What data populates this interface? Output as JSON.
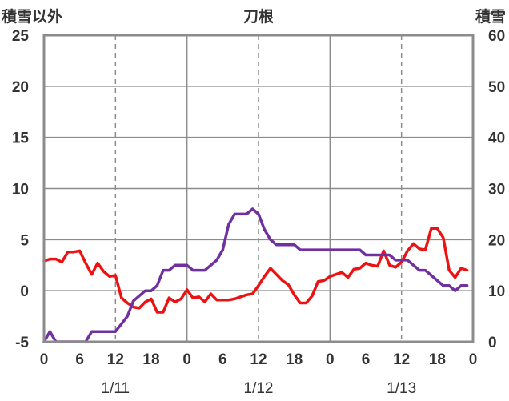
{
  "chart_data": {
    "type": "line",
    "title": "刀根",
    "left_axis_label": "積雪以外",
    "right_axis_label": "積雪",
    "left_ylim": [
      -5,
      25
    ],
    "left_yticks": [
      "-5",
      "0",
      "5",
      "10",
      "15",
      "20",
      "25"
    ],
    "right_ylim": [
      0,
      60
    ],
    "right_yticks": [
      "0",
      "10",
      "20",
      "30",
      "40",
      "50",
      "60"
    ],
    "xlim": [
      0,
      72
    ],
    "x_tick_labels": [
      "0",
      "6",
      "12",
      "18",
      "0",
      "6",
      "12",
      "18",
      "0",
      "6",
      "12",
      "18",
      "0"
    ],
    "date_labels": [
      {
        "text": "1/11",
        "x": 12
      },
      {
        "text": "1/12",
        "x": 36
      },
      {
        "text": "1/13",
        "x": 60
      }
    ],
    "solid_gridlines_x": [
      0,
      24,
      48,
      72
    ],
    "dashed_gridlines_x": [
      12,
      36,
      60
    ],
    "grid_y": true,
    "series": [
      {
        "color": "#ee1111",
        "axis": "left",
        "x": [
          0,
          1,
          2,
          3,
          4,
          5,
          6,
          7,
          8,
          9,
          10,
          11,
          12,
          13,
          14,
          15,
          16,
          17,
          18,
          19,
          20,
          21,
          22,
          23,
          24,
          25,
          26,
          27,
          28,
          29,
          30,
          31,
          32,
          33,
          34,
          35,
          36,
          37,
          38,
          39,
          40,
          41,
          42,
          43,
          44,
          45,
          46,
          47,
          48,
          49,
          50,
          51,
          52,
          53,
          54,
          55,
          56,
          57,
          58,
          59,
          60,
          61,
          62,
          63,
          64,
          65,
          66,
          67,
          68,
          69,
          70,
          71
        ],
        "values": [
          2.9,
          3.1,
          3.1,
          2.8,
          3.8,
          3.8,
          3.9,
          2.7,
          1.6,
          2.7,
          1.9,
          1.4,
          1.5,
          -0.7,
          -1.2,
          -1.6,
          -1.7,
          -1.1,
          -0.8,
          -2.1,
          -2.1,
          -0.7,
          -1.1,
          -0.8,
          0.1,
          -0.7,
          -0.6,
          -1.1,
          -0.3,
          -0.9,
          -0.9,
          -0.9,
          -0.8,
          -0.6,
          -0.4,
          -0.3,
          0.5,
          1.4,
          2.2,
          1.6,
          1.0,
          0.6,
          -0.4,
          -1.2,
          -1.2,
          -0.5,
          0.9,
          1.0,
          1.4,
          1.6,
          1.8,
          1.3,
          2.1,
          2.2,
          2.7,
          2.5,
          2.4,
          3.9,
          2.5,
          2.3,
          2.8,
          3.9,
          4.6,
          4.1,
          4.0,
          6.1,
          6.1,
          5.2,
          2.0,
          1.3,
          2.2,
          2.0
        ]
      },
      {
        "color": "#7030a0",
        "axis": "right",
        "x": [
          0,
          1,
          2,
          3,
          4,
          5,
          6,
          7,
          8,
          9,
          10,
          11,
          12,
          13,
          14,
          15,
          16,
          17,
          18,
          19,
          20,
          21,
          22,
          23,
          24,
          25,
          26,
          27,
          28,
          29,
          30,
          31,
          32,
          33,
          34,
          35,
          36,
          37,
          38,
          39,
          40,
          41,
          42,
          43,
          44,
          45,
          46,
          47,
          48,
          49,
          50,
          51,
          52,
          53,
          54,
          55,
          56,
          57,
          58,
          59,
          60,
          61,
          62,
          63,
          64,
          65,
          66,
          67,
          68,
          69,
          70,
          71
        ],
        "values": [
          0,
          2,
          0,
          0,
          0,
          0,
          0,
          0,
          2,
          2,
          2,
          2,
          2,
          3.5,
          5,
          8,
          9,
          10,
          10,
          11,
          14,
          14,
          15,
          15,
          15,
          14,
          14,
          14,
          15,
          16,
          18,
          23,
          25,
          25,
          25,
          26,
          25,
          22,
          20,
          19,
          19,
          19,
          19,
          18,
          18,
          18,
          18,
          18,
          18,
          18,
          18,
          18,
          18,
          18,
          17,
          17,
          17,
          17,
          17,
          16,
          16,
          16,
          15,
          14,
          14,
          13,
          12,
          11,
          11,
          10,
          11,
          11
        ]
      }
    ]
  }
}
